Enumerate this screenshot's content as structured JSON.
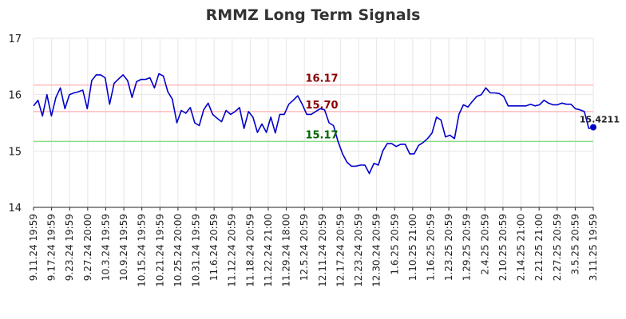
{
  "chart_data": {
    "type": "line",
    "title": "RMMZ Long Term Signals",
    "xlabel": "",
    "ylabel": "",
    "ylim": [
      14,
      17
    ],
    "yticks": [
      14,
      15,
      16,
      17
    ],
    "grid": true,
    "x_tick_labels": [
      "9.11.24 19:59",
      "9.17.24 19:59",
      "9.23.24 19:59",
      "9.27.24 20:00",
      "10.3.24 19:59",
      "10.9.24 19:59",
      "10.15.24 19:59",
      "10.21.24 19:59",
      "10.25.24 20:00",
      "10.31.24 19:59",
      "11.6.24 20:59",
      "11.12.24 20:59",
      "11.18.24 20:59",
      "11.22.24 21:00",
      "11.29.24 18:00",
      "12.5.24 20:59",
      "12.11.24 20:59",
      "12.17.24 20:59",
      "12.23.24 20:59",
      "12.30.24 20:59",
      "1.6.25 20:59",
      "1.10.25 21:00",
      "1.16.25 20:59",
      "1.23.25 20:59",
      "1.29.25 20:59",
      "2.4.25 20:59",
      "2.10.25 20:59",
      "2.14.25 21:00",
      "2.21.25 21:00",
      "2.27.25 20:59",
      "3.5.25 20:59",
      "3.11.25 19:59"
    ],
    "hlines": [
      {
        "value": 16.17,
        "label": "16.17",
        "line_color": "#ffbbbb",
        "label_color": "#8b0000"
      },
      {
        "value": 15.7,
        "label": "15.70",
        "line_color": "#ffbbbb",
        "label_color": "#8b0000"
      },
      {
        "value": 15.17,
        "label": "15.17",
        "line_color": "#88dd88",
        "label_color": "#006400"
      }
    ],
    "series": [
      {
        "color": "#0000cc",
        "values": [
          15.8,
          15.9,
          15.62,
          16.0,
          15.62,
          15.95,
          16.12,
          15.75,
          16.0,
          16.03,
          16.05,
          16.08,
          15.75,
          16.25,
          16.35,
          16.35,
          16.3,
          15.83,
          16.2,
          16.28,
          16.35,
          16.25,
          15.95,
          16.23,
          16.27,
          16.27,
          16.3,
          16.12,
          16.37,
          16.33,
          16.05,
          15.92,
          15.5,
          15.72,
          15.67,
          15.77,
          15.5,
          15.45,
          15.73,
          15.85,
          15.65,
          15.58,
          15.52,
          15.72,
          15.65,
          15.7,
          15.77,
          15.4,
          15.7,
          15.6,
          15.33,
          15.48,
          15.33,
          15.6,
          15.32,
          15.65,
          15.65,
          15.83,
          15.9,
          15.98,
          15.83,
          15.65,
          15.65,
          15.7,
          15.75,
          15.73,
          15.5,
          15.45,
          15.17,
          14.95,
          14.8,
          14.73,
          14.73,
          14.75,
          14.75,
          14.6,
          14.78,
          14.75,
          15.0,
          15.13,
          15.13,
          15.08,
          15.12,
          15.12,
          14.95,
          14.95,
          15.1,
          15.15,
          15.22,
          15.32,
          15.6,
          15.55,
          15.25,
          15.28,
          15.22,
          15.65,
          15.82,
          15.78,
          15.88,
          15.97,
          16.0,
          16.12,
          16.03,
          16.03,
          16.02,
          15.97,
          15.8,
          15.8,
          15.8,
          15.8,
          15.8,
          15.83,
          15.8,
          15.82,
          15.9,
          15.85,
          15.82,
          15.82,
          15.85,
          15.83,
          15.83,
          15.75,
          15.73,
          15.7,
          15.4,
          15.4211
        ]
      }
    ],
    "last_value_label": "15.4211"
  }
}
